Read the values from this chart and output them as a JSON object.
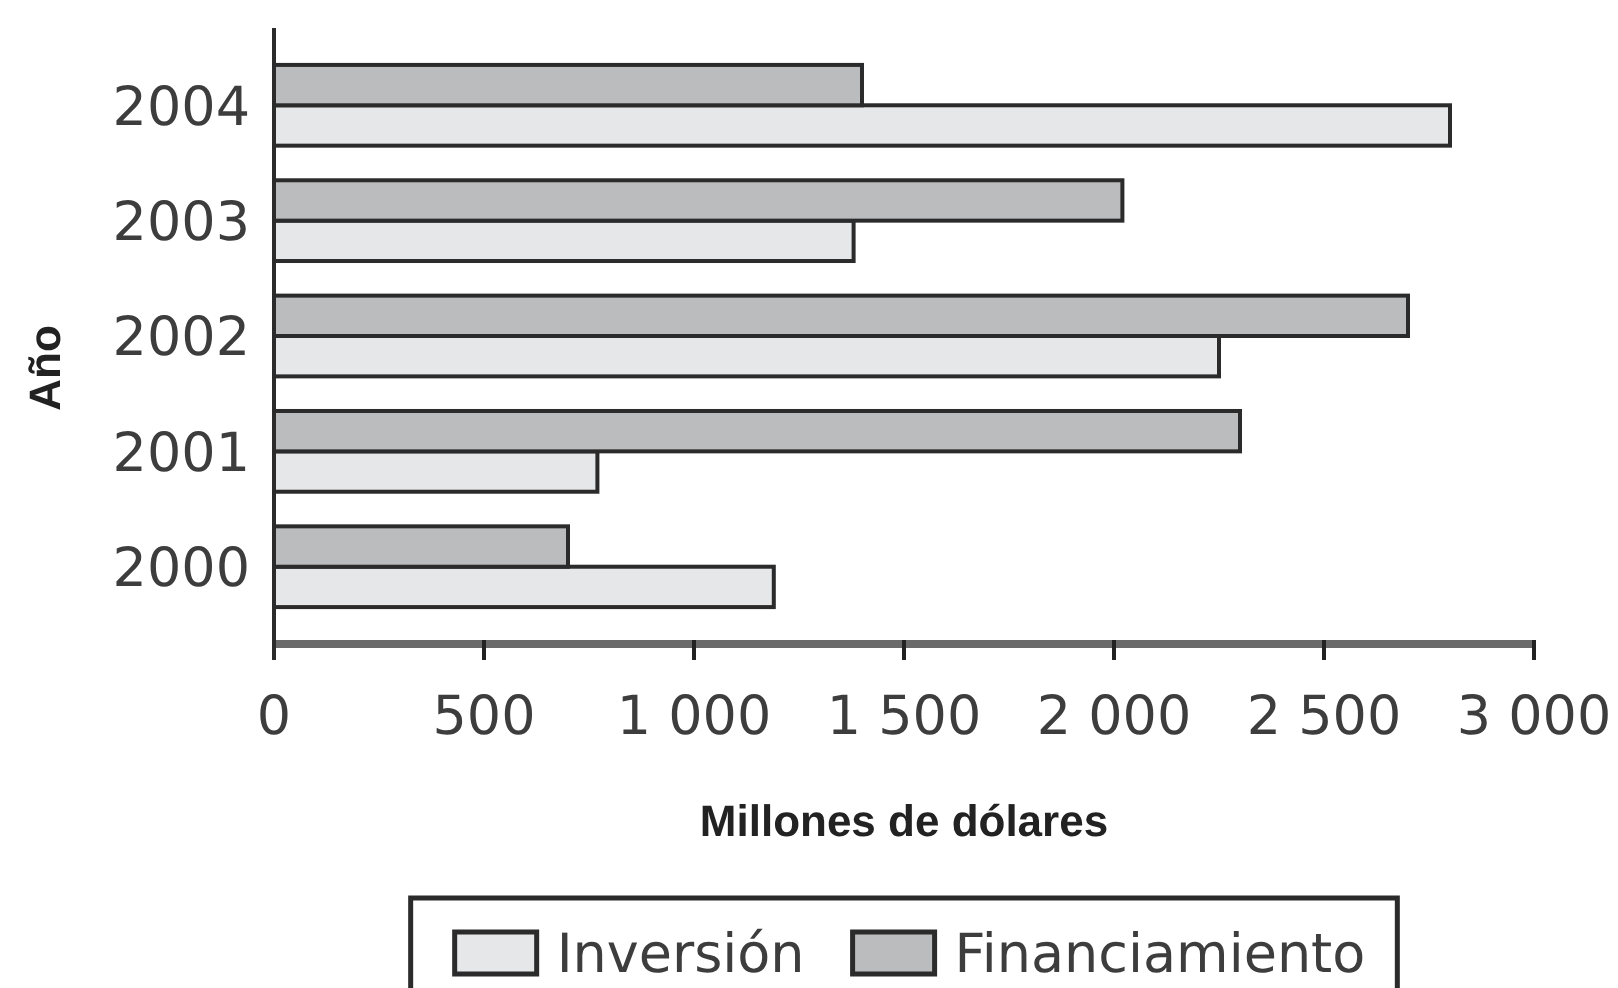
{
  "chart_data": {
    "type": "bar",
    "orientation": "horizontal",
    "categories": [
      "2004",
      "2003",
      "2002",
      "2001",
      "2000"
    ],
    "series": [
      {
        "name": "Inversión",
        "color": "#e6e7e8",
        "values": [
          2800,
          1380,
          2250,
          770,
          1190
        ]
      },
      {
        "name": "Financiamiento",
        "color": "#bbbcbe",
        "values": [
          1400,
          2020,
          2700,
          2300,
          700
        ]
      }
    ],
    "xlim": [
      0,
      3000
    ],
    "xticks": [
      0,
      500,
      {
        "value": 1000,
        "label": "1 000"
      },
      {
        "value": 1500,
        "label": "1 500"
      },
      {
        "value": 2000,
        "label": "2 000"
      },
      {
        "value": 2500,
        "label": "2 500"
      },
      {
        "value": 3000,
        "label": "3 000"
      }
    ],
    "xlabel": "Millones de dólares",
    "ylabel": "Año",
    "legend": "bottom"
  }
}
